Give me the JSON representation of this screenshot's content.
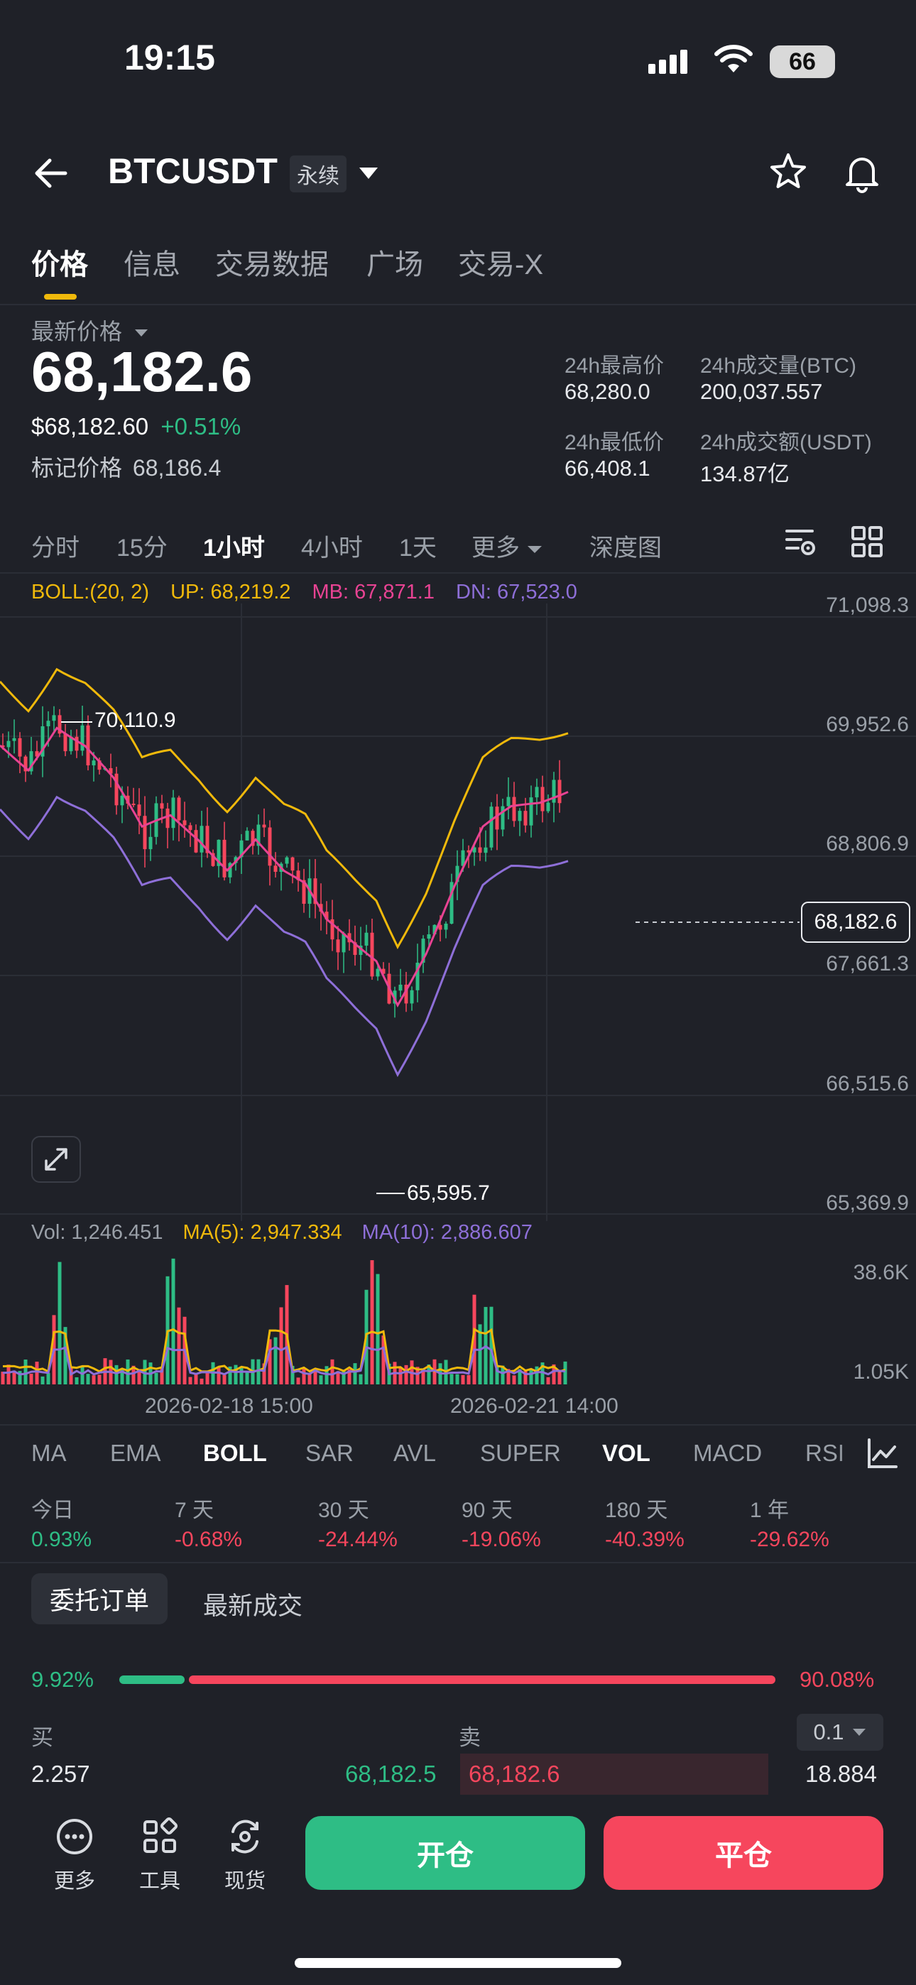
{
  "status": {
    "time": "19:15",
    "battery": "66"
  },
  "header": {
    "symbol": "BTCUSDT",
    "contract_badge": "永续"
  },
  "tabs": [
    "价格",
    "信息",
    "交易数据",
    "广场",
    "交易-X"
  ],
  "price": {
    "latest_label": "最新价格",
    "last": "68,182.6",
    "usd": "$68,182.60",
    "change": "+0.51%",
    "mark_label": "标记价格",
    "mark": "68,186.4"
  },
  "stats": {
    "high_label": "24h最高价",
    "high": "68,280.0",
    "vol_btc_label": "24h成交量(BTC)",
    "vol_btc": "200,037.557",
    "low_label": "24h最低价",
    "low": "66,408.1",
    "vol_usdt_label": "24h成交额(USDT)",
    "vol_usdt": "134.87亿"
  },
  "periods": [
    "分时",
    "15分",
    "1小时",
    "4小时",
    "1天",
    "更多",
    "深度图"
  ],
  "boll": {
    "label": "BOLL:(20, 2)",
    "up": "UP: 68,219.2",
    "mb": "MB: 67,871.1",
    "dn": "DN: 67,523.0"
  },
  "price_axis": [
    "71,098.3",
    "69,952.6",
    "68,806.9",
    "67,661.3",
    "66,515.6",
    "65,369.9"
  ],
  "current_price_tag": "68,182.6",
  "annotations": {
    "high": "70,110.9",
    "low": "65,595.7"
  },
  "volume": {
    "vol": "Vol: 1,246.451",
    "ma5": "MA(5): 2,947.334",
    "ma10": "MA(10): 2,886.607",
    "axis_top": "38.6K",
    "axis_bottom": "1.05K"
  },
  "time_axis": [
    "2026-02-18 15:00",
    "2026-02-21 14:00"
  ],
  "indicators": [
    "MA",
    "EMA",
    "BOLL",
    "SAR",
    "AVL",
    "SUPER",
    "VOL",
    "MACD",
    "RSI"
  ],
  "performance": [
    {
      "label": "今日",
      "value": "0.93%"
    },
    {
      "label": "7 天",
      "value": "-0.68%"
    },
    {
      "label": "30 天",
      "value": "-24.44%"
    },
    {
      "label": "90 天",
      "value": "-19.06%"
    },
    {
      "label": "180 天",
      "value": "-40.39%"
    },
    {
      "label": "1 年",
      "value": "-29.62%"
    }
  ],
  "orderbook": {
    "tab_orders": "委托订单",
    "tab_trades": "最新成交",
    "buy_pct": "9.92%",
    "sell_pct": "90.08%",
    "buy_ratio": 0.0992,
    "buy_label": "买",
    "sell_label": "卖",
    "precision": "0.1",
    "bid_qty": "2.257",
    "bid_price": "68,182.5",
    "ask_price": "68,182.6",
    "ask_qty": "18.884"
  },
  "bottom": {
    "more": "更多",
    "tools": "工具",
    "spot": "现货",
    "open": "开仓",
    "close": "平仓"
  },
  "colors": {
    "up": "#2ebd85",
    "down": "#f6465d",
    "boll_up": "#f0b90b",
    "boll_mb": "#e84393",
    "boll_dn": "#8e6fd8",
    "accent": "#f0b90b"
  }
}
